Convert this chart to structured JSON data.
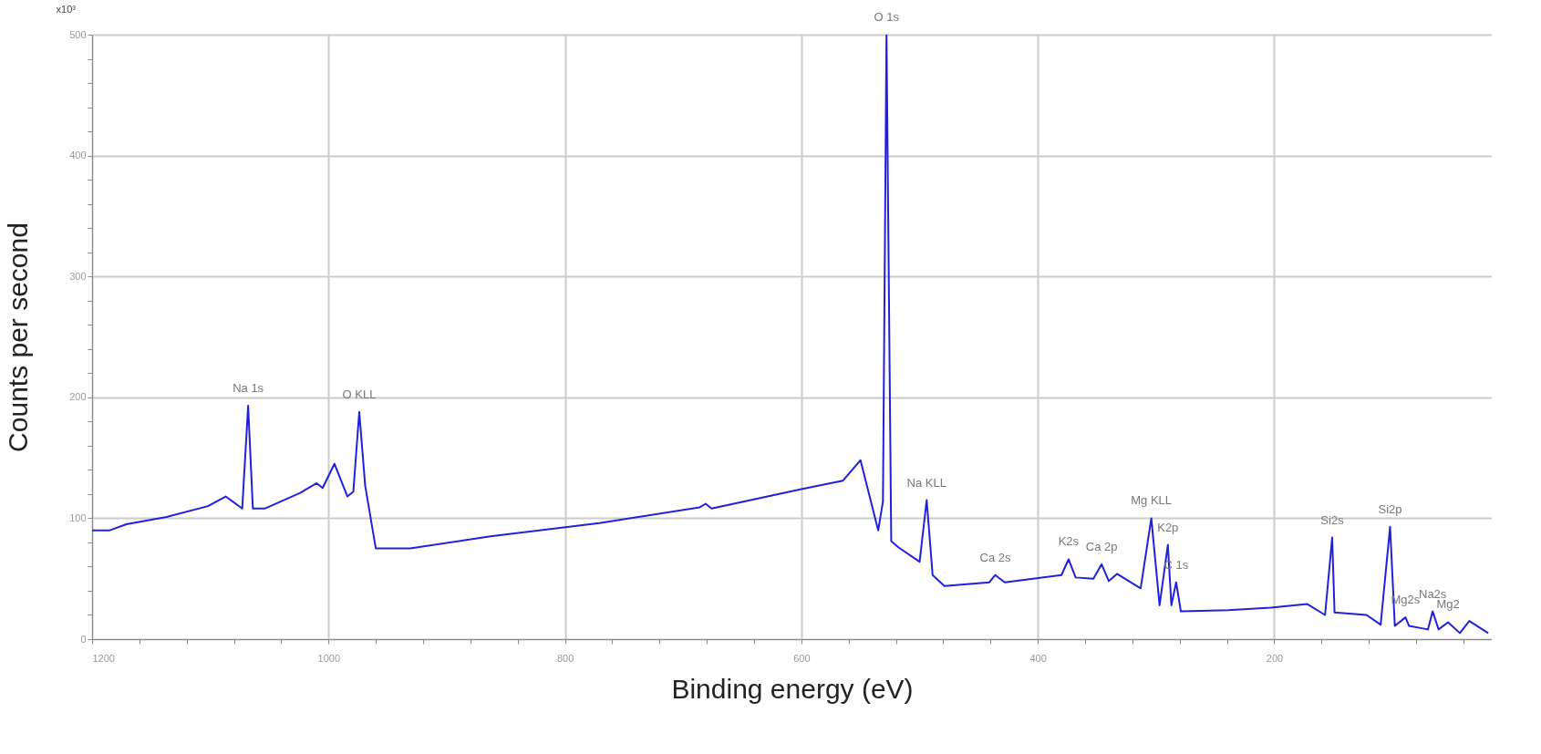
{
  "chart_data": {
    "type": "line",
    "xlabel": "Binding energy (eV)",
    "ylabel": "Counts per second",
    "xlim": [
      1200,
      16
    ],
    "ylim": [
      0,
      500
    ],
    "xticks": [
      1200,
      {
        "value": 1160,
        "label": null
      },
      {
        "value": 1120,
        "label": null
      },
      {
        "value": 1080,
        "label": null
      },
      {
        "value": 1040,
        "label": null
      },
      1000,
      {
        "value": 960,
        "label": null
      },
      {
        "value": 920,
        "label": null
      },
      {
        "value": 880,
        "label": null
      },
      {
        "value": 840,
        "label": null
      },
      800,
      {
        "value": 760,
        "label": null
      },
      {
        "value": 720,
        "label": null
      },
      {
        "value": 680,
        "label": null
      },
      {
        "value": 640,
        "label": null
      },
      600,
      {
        "value": 560,
        "label": null
      },
      {
        "value": 520,
        "label": null
      },
      {
        "value": 480,
        "label": null
      },
      {
        "value": 440,
        "label": null
      },
      400,
      {
        "value": 360,
        "label": null
      },
      {
        "value": 320,
        "label": null
      },
      {
        "value": 280,
        "label": null
      },
      {
        "value": 240,
        "label": null
      },
      200,
      {
        "value": 160,
        "label": null
      },
      {
        "value": 120,
        "label": null
      },
      {
        "value": 80,
        "label": null
      },
      {
        "value": 40,
        "label": null
      }
    ],
    "yticks": [
      0,
      {
        "value": 20,
        "label": null
      },
      {
        "value": 40,
        "label": null
      },
      {
        "value": 60,
        "label": null
      },
      {
        "value": 80,
        "label": null
      },
      100,
      {
        "value": 120,
        "label": null
      },
      {
        "value": 140,
        "label": null
      },
      {
        "value": 160,
        "label": null
      },
      {
        "value": 180,
        "label": null
      },
      200,
      {
        "value": 220,
        "label": null
      },
      {
        "value": 240,
        "label": null
      },
      {
        "value": 260,
        "label": null
      },
      {
        "value": 280,
        "label": null
      },
      300,
      {
        "value": 320,
        "label": null
      },
      {
        "value": 340,
        "label": null
      },
      {
        "value": 360,
        "label": null
      },
      {
        "value": 380,
        "label": null
      },
      400,
      {
        "value": 420,
        "label": null
      },
      {
        "value": 440,
        "label": null
      },
      {
        "value": 460,
        "label": null
      },
      {
        "value": 480,
        "label": null
      },
      500
    ],
    "grid": true,
    "legend": false,
    "marker": "none",
    "line_style": "solid",
    "series": [
      {
        "color": "#2020e0",
        "x": [
          1200,
          1185,
          1171,
          1137,
          1102,
          1087,
          1073,
          1068,
          1064,
          1054,
          1024,
          1010,
          1005,
          995,
          984,
          979,
          974,
          969,
          960,
          931,
          863,
          771,
          686,
          681,
          676,
          600,
          565,
          550,
          535,
          531,
          528,
          524,
          518,
          500,
          494,
          489,
          479,
          441,
          436,
          428,
          380,
          374,
          368,
          353,
          346,
          340,
          333,
          313,
          304,
          297,
          290,
          287,
          283,
          279,
          239,
          203,
          172,
          157,
          151,
          149,
          122,
          110,
          102,
          98,
          89,
          86,
          70,
          66,
          61,
          53,
          43,
          35,
          19
        ],
        "values": [
          90,
          90,
          95,
          101,
          110,
          118,
          108,
          193,
          108,
          108,
          121,
          129,
          125,
          145,
          118,
          122,
          188,
          127,
          75,
          75,
          85,
          96,
          109,
          112,
          108,
          124,
          131,
          148,
          90,
          114,
          500,
          81,
          76,
          64,
          115,
          53,
          44,
          47,
          53,
          47,
          53,
          66,
          51,
          50,
          62,
          48,
          54,
          42,
          100,
          28,
          78,
          28,
          47,
          23,
          24,
          26,
          29,
          20,
          84,
          22,
          20,
          12,
          93,
          11,
          18,
          11,
          8,
          23,
          8,
          14,
          5,
          15,
          5
        ]
      }
    ],
    "annotations": [
      "x10³",
      {
        "text": "Na 1s",
        "x": 1068,
        "y": 193
      },
      {
        "text": "O KLL",
        "x": 974,
        "y": 188
      },
      {
        "text": "O 1s",
        "x": 528,
        "y": 500
      },
      {
        "text": "Na KLL",
        "x": 494,
        "y": 115
      },
      {
        "text": "Ca 2s",
        "x": 436,
        "y": 53
      },
      {
        "text": "K2s",
        "x": 374,
        "y": 66
      },
      {
        "text": "Ca 2p",
        "x": 346,
        "y": 62
      },
      {
        "text": "Mg KLL",
        "x": 304,
        "y": 100
      },
      {
        "text": "K2p",
        "x": 290,
        "y": 78
      },
      {
        "text": "C 1s",
        "x": 283,
        "y": 47
      },
      {
        "text": "Si2s",
        "x": 151,
        "y": 84
      },
      {
        "text": "Si2p",
        "x": 102,
        "y": 93
      },
      {
        "text": "Mg2s",
        "x": 89,
        "y": 18
      },
      {
        "text": "Na2s",
        "x": 66,
        "y": 23
      },
      {
        "text": "Mg2",
        "x": 53,
        "y": 14
      }
    ]
  }
}
